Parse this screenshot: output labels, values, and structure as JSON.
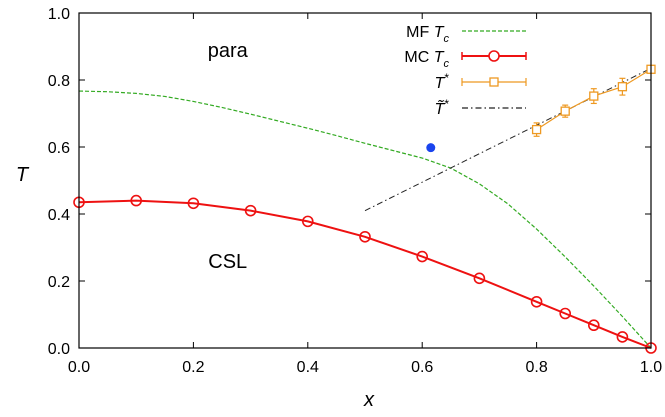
{
  "chart_data": {
    "type": "line",
    "xlabel": "x",
    "ylabel": "T",
    "xlim": [
      0.0,
      1.0
    ],
    "ylim": [
      0.0,
      1.0
    ],
    "xticks": [
      "0.0",
      "0.2",
      "0.4",
      "0.6",
      "0.8",
      "1.0"
    ],
    "yticks": [
      "0.0",
      "0.2",
      "0.4",
      "0.6",
      "0.8",
      "1.0"
    ],
    "annotations": [
      {
        "text": "para",
        "x": 0.26,
        "y": 0.89
      },
      {
        "text": "CSL",
        "x": 0.26,
        "y": 0.26
      }
    ],
    "legend_position": "top-right",
    "series": [
      {
        "name": "MF T_c",
        "legend_prefix": "MF ",
        "legend_symbol": "T",
        "legend_sub": "c",
        "style": "dashed",
        "color": "#33aa22",
        "x": [
          0.0,
          0.05,
          0.1,
          0.15,
          0.2,
          0.25,
          0.3,
          0.35,
          0.4,
          0.45,
          0.5,
          0.55,
          0.6,
          0.65,
          0.7,
          0.75,
          0.8,
          0.85,
          0.9,
          0.95,
          1.0
        ],
        "y": [
          0.767,
          0.765,
          0.76,
          0.751,
          0.736,
          0.718,
          0.698,
          0.677,
          0.656,
          0.634,
          0.611,
          0.589,
          0.567,
          0.537,
          0.49,
          0.43,
          0.355,
          0.272,
          0.185,
          0.094,
          0.0
        ]
      },
      {
        "name": "MC T_c",
        "legend_prefix": "MC ",
        "legend_symbol": "T",
        "legend_sub": "c",
        "style": "solid-circles",
        "color": "#ee1111",
        "x": [
          0.0,
          0.1,
          0.2,
          0.3,
          0.4,
          0.5,
          0.6,
          0.7,
          0.8,
          0.85,
          0.9,
          0.95,
          1.0
        ],
        "y": [
          0.435,
          0.44,
          0.432,
          0.41,
          0.378,
          0.332,
          0.273,
          0.208,
          0.138,
          0.103,
          0.068,
          0.033,
          0.0
        ]
      },
      {
        "name": "T*",
        "legend_prefix": "",
        "legend_symbol": "T",
        "legend_sup": "*",
        "style": "solid-squares-errorbars",
        "color": "#ee9922",
        "x": [
          0.8,
          0.85,
          0.9,
          0.95,
          1.0
        ],
        "y": [
          0.652,
          0.707,
          0.752,
          0.78,
          0.832
        ],
        "err": [
          0.02,
          0.018,
          0.022,
          0.025,
          0.01
        ]
      },
      {
        "name": "T̃*",
        "legend_prefix": "",
        "legend_symbol": "T̃",
        "legend_sup": "*",
        "style": "dash-dot",
        "color": "#222222",
        "x": [
          0.5,
          1.0
        ],
        "y": [
          0.41,
          0.835
        ]
      }
    ],
    "marker": {
      "x": 0.615,
      "y": 0.598,
      "color": "#1a44ee"
    }
  }
}
